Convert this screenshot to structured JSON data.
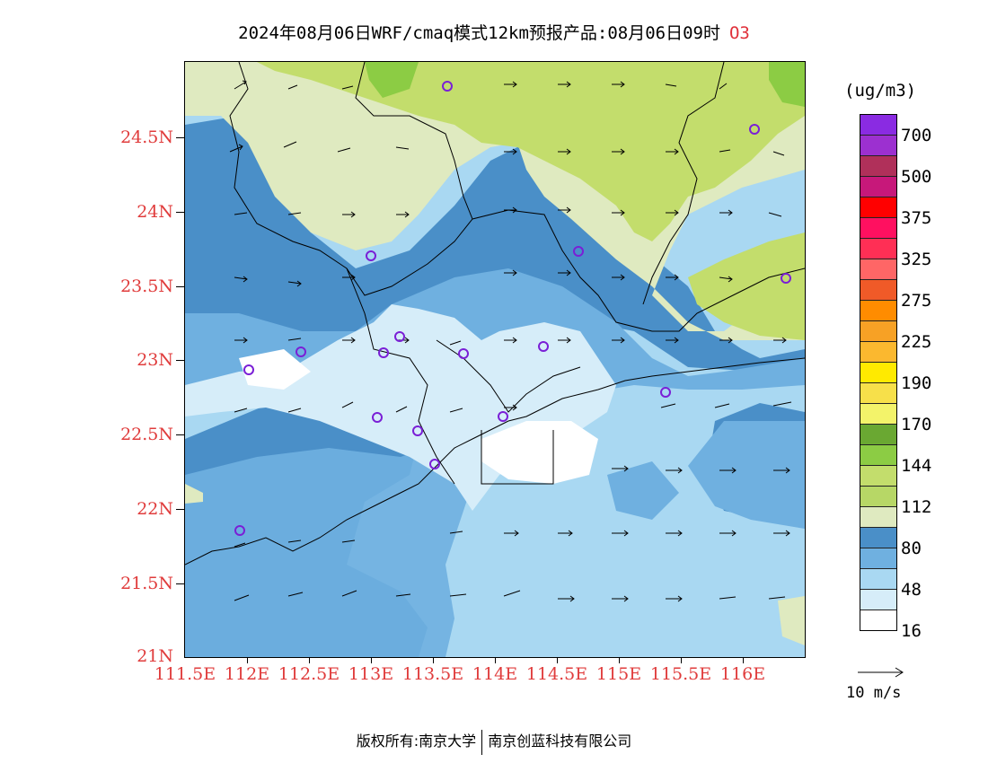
{
  "title": {
    "main": "2024年08月06日WRF/cmaq模式12km预报产品:08月06日09时",
    "species": "O3"
  },
  "axes": {
    "lat_labels": [
      "24.5N",
      "24N",
      "23.5N",
      "23N",
      "22.5N",
      "22N",
      "21.5N",
      "21N"
    ],
    "lon_labels": [
      "111.5E",
      "112E",
      "112.5E",
      "113E",
      "113.5E",
      "114E",
      "114.5E",
      "115E",
      "115.5E",
      "116E"
    ]
  },
  "legend": {
    "unit": "(ug/m3)",
    "colors": [
      "#8a2be2",
      "#9c30d0",
      "#b0305a",
      "#c7187a",
      "#ff0000",
      "#ff1060",
      "#ff2f55",
      "#ff6666",
      "#f05a28",
      "#ff8c00",
      "#f7a125",
      "#fbb82f",
      "#ffea00",
      "#f7e04a",
      "#f3f36a",
      "#6aa832",
      "#8ccc44",
      "#c3dd6c",
      "#b7d766",
      "#dfeac0",
      "#4a8fc8",
      "#6fb0e0",
      "#a9d8f2",
      "#d6edf9",
      "#ffffff"
    ],
    "labels": [
      "700",
      "500",
      "375",
      "325",
      "275",
      "225",
      "190",
      "170",
      "144",
      "112",
      "80",
      "48",
      "16"
    ]
  },
  "reference_vector": {
    "label": "10 m/s"
  },
  "copyright": {
    "left": "版权所有:南京大学",
    "right": "南京创蓝科技有限公司"
  },
  "colors": {
    "low_white": "#ffffff",
    "band_16": "#d6edf9",
    "band_32": "#a9d8f2",
    "band_48": "#6fb0e0",
    "band_64": "#4a8fc8",
    "band_80": "#dfeac0",
    "band_96": "#c3dd6c",
    "band_112": "#b7d766",
    "band_144": "#8ccc44",
    "band_160": "#6aa832",
    "station": "#7a1fd6",
    "axis_label": "#e03c3c"
  }
}
